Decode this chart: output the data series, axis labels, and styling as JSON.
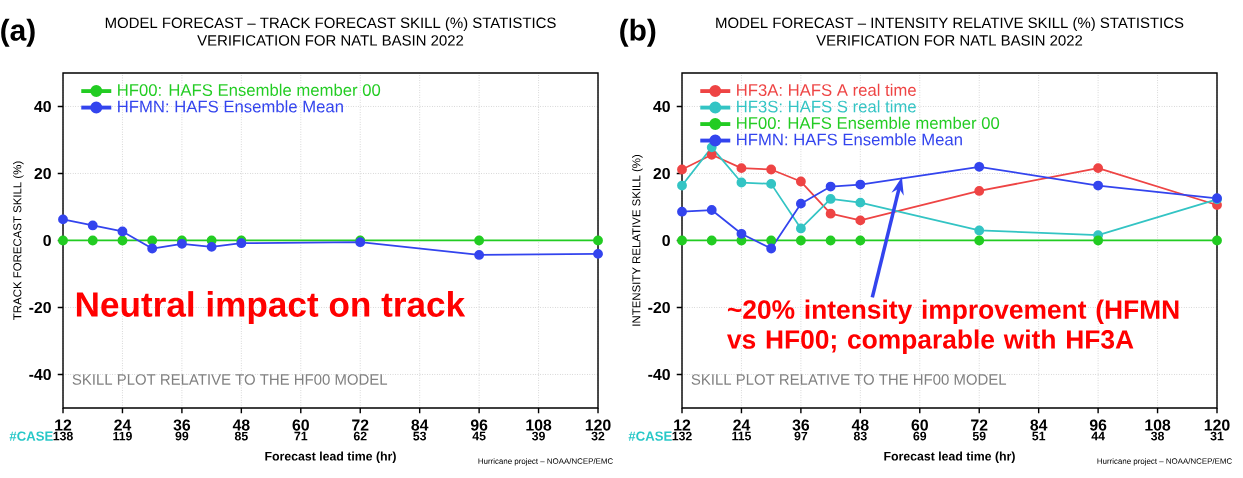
{
  "chart_data": [
    {
      "type": "line",
      "title": "MODEL FORECAST – TRACK FORECAST SKILL (%) STATISTICS",
      "subtitle": "VERIFICATION FOR NATL BASIN 2022",
      "xlabel": "Forecast lead time (hr)",
      "ylabel": "TRACK FORECAST SKILL (%)",
      "x": [
        12,
        18,
        24,
        30,
        36,
        42,
        48,
        72,
        96,
        120
      ],
      "series": [
        {
          "name": "HF00: HAFS Ensemble member 00",
          "color": "#22cc22",
          "values": [
            0,
            0,
            0,
            0,
            0,
            0,
            0,
            0,
            0,
            0
          ]
        },
        {
          "name": "HFMN: HAFS Ensemble Mean",
          "color": "#3344ee",
          "values": [
            6.3,
            4.5,
            2.7,
            -2.4,
            -1.0,
            -1.9,
            -0.8,
            -0.5,
            -4.3,
            -4.0
          ]
        }
      ],
      "xlim": [
        12,
        120
      ],
      "xticks": [
        12,
        24,
        36,
        48,
        60,
        72,
        84,
        96,
        108,
        120
      ],
      "ylim": [
        -50,
        50
      ],
      "yticks": [
        -40,
        -20,
        0,
        20,
        40
      ],
      "grid": true,
      "legend": "top left",
      "marker": "circle",
      "line_style": "solid",
      "annotations": [
        "(a)",
        "Neutral impact on track",
        "SKILL PLOT RELATIVE TO THE HF00 MODEL",
        "Hurricane project – NOAA/NCEP/EMC",
        "#CASE",
        "138",
        "119",
        "99",
        "85",
        "71",
        "62",
        "53",
        "45",
        "39",
        "32"
      ]
    },
    {
      "type": "line",
      "title": "MODEL FORECAST – INTENSITY RELATIVE SKILL (%) STATISTICS",
      "subtitle": "VERIFICATION FOR NATL BASIN 2022",
      "xlabel": "Forecast lead time (hr)",
      "ylabel": "INTENSITY RELATIVE SKILL (%)",
      "x": [
        12,
        18,
        24,
        30,
        36,
        42,
        48,
        72,
        96,
        120
      ],
      "series": [
        {
          "name": "HF3A: HAFS A real time",
          "color": "#ee4444",
          "values": [
            21.2,
            25.6,
            21.6,
            21.2,
            17.6,
            8.0,
            6.0,
            14.8,
            21.6,
            10.6
          ]
        },
        {
          "name": "HF3S: HAFS S real time",
          "color": "#33c4c4",
          "values": [
            16.4,
            27.8,
            17.3,
            16.9,
            3.6,
            12.4,
            11.3,
            3.0,
            1.6,
            12.3
          ]
        },
        {
          "name": "HF00: HAFS Ensemble member 00",
          "color": "#22cc22",
          "values": [
            0,
            0,
            0,
            0,
            0,
            0,
            0,
            0,
            0,
            0
          ]
        },
        {
          "name": "HFMN: HAFS Ensemble Mean",
          "color": "#3344ee",
          "values": [
            8.6,
            9.1,
            2.0,
            -2.4,
            11.0,
            16.1,
            16.7,
            22.0,
            16.4,
            12.6
          ]
        }
      ],
      "xlim": [
        12,
        120
      ],
      "xticks": [
        12,
        24,
        36,
        48,
        60,
        72,
        84,
        96,
        108,
        120
      ],
      "ylim": [
        -50,
        50
      ],
      "yticks": [
        -40,
        -20,
        0,
        20,
        40
      ],
      "grid": true,
      "legend": "top left",
      "marker": "circle",
      "line_style": "solid",
      "annotations": [
        "(b)",
        "~20% intensity improvement (HFMN vs HF00; comparable with HF3A",
        "SKILL PLOT RELATIVE TO THE HF00 MODEL",
        "Hurricane project – NOAA/NCEP/EMC",
        "#CASE",
        "132",
        "115",
        "97",
        "83",
        "69",
        "59",
        "51",
        "44",
        "38",
        "31"
      ]
    }
  ]
}
